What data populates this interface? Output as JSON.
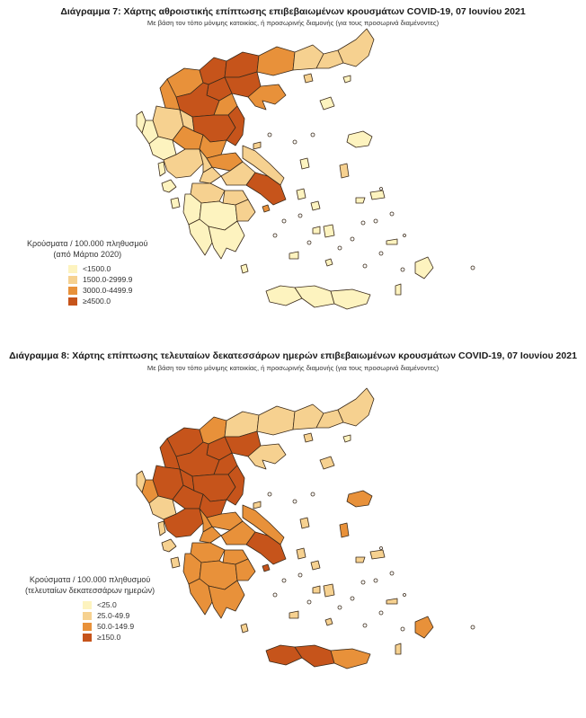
{
  "colors": {
    "low": "#fdf3bf",
    "mid_low": "#f6d190",
    "mid_high": "#e8913a",
    "high": "#c6541b",
    "border": "#3a2a1a"
  },
  "panels": [
    {
      "title": "Διάγραμμα 7: Χάρτης αθροιστικής επίπτωσης επιβεβαιωμένων κρουσμάτων COVID-19, 07 Ιουνίου 2021",
      "subtitle": "Με βάση τον τόπο μόνιμης κατοικίας, ή προσωρινής διαμονής (για τους προσωρινά διαμένοντες)",
      "legend": {
        "title_line1": "Κρούσματα / 100.000 πληθυσμού",
        "title_line2": "(από Μάρτιο 2020)",
        "items": [
          {
            "label": "<1500.0",
            "level": "low"
          },
          {
            "label": "1500.0-2999.9",
            "level": "mid_low"
          },
          {
            "label": "3000.0-4499.9",
            "level": "mid_high"
          },
          {
            "label": "≥4500.0",
            "level": "high"
          }
        ]
      }
    },
    {
      "title": "Διάγραμμα 8: Χάρτης επίπτωσης τελευταίων δεκατεσσάρων ημερών επιβεβαιωμένων κρουσμάτων COVID-19, 07 Ιουνίου 2021",
      "subtitle": "Με βάση τον τόπο μόνιμης κατοικίας, ή προσωρινής διαμονής (για τους προσωρινά διαμένοντες)",
      "legend": {
        "title_line1": "Κρούσματα / 100.000 πληθυσμού",
        "title_line2": "(τελευταίων δεκατεσσάρων ημερών)",
        "items": [
          {
            "label": "<25.0",
            "level": "low"
          },
          {
            "label": "25.0-49.9",
            "level": "mid_low"
          },
          {
            "label": "50.0-149.9",
            "level": "mid_high"
          },
          {
            "label": "≥150.0",
            "level": "high"
          }
        ]
      }
    }
  ]
}
